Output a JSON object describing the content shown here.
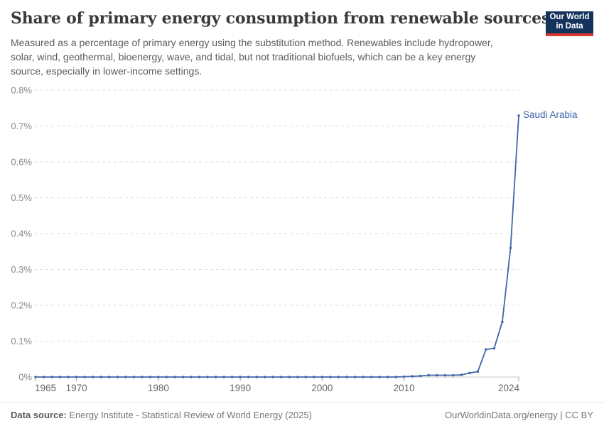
{
  "header": {
    "title": "Share of primary energy consumption from renewable sources",
    "subtitle_lines": [
      "Measured as a percentage of primary energy using the substitution method. Renewables include hydropower,",
      "solar, wind, geothermal, bioenergy, wave, and tidal, but not traditional biofuels, which can be a key energy",
      "source, especially in lower-income settings."
    ]
  },
  "logo": {
    "line1": "Our World",
    "line2": "in Data",
    "navy_color": "#14335c",
    "red_color": "#d7382e"
  },
  "footer": {
    "datasource_label": "Data source:",
    "datasource_text": " Energy Institute - Statistical Review of World Energy (2025)",
    "right_text": "OurWorldinData.org/energy | CC BY"
  },
  "colors": {
    "line": "#4066a8",
    "entity_label": "#3d63a8",
    "gridline": "#dedede",
    "axis_line": "#c8c8c8",
    "tick_mark": "#a9a9a9",
    "y_tick_label": "#8a8a8a",
    "x_tick_label": "#666666"
  },
  "chart_data": {
    "type": "line",
    "title": "Share of primary energy consumption from renewable sources",
    "xlabel": "",
    "ylabel": "",
    "unit": "%",
    "ylim": [
      0,
      0.8
    ],
    "grid": "horizontal-dashed",
    "legend_position": "end-of-line-label",
    "x": [
      1965,
      1966,
      1967,
      1968,
      1969,
      1970,
      1971,
      1972,
      1973,
      1974,
      1975,
      1976,
      1977,
      1978,
      1979,
      1980,
      1981,
      1982,
      1983,
      1984,
      1985,
      1986,
      1987,
      1988,
      1989,
      1990,
      1991,
      1992,
      1993,
      1994,
      1995,
      1996,
      1997,
      1998,
      1999,
      2000,
      2001,
      2002,
      2003,
      2004,
      2005,
      2006,
      2007,
      2008,
      2009,
      2010,
      2011,
      2012,
      2013,
      2014,
      2015,
      2016,
      2017,
      2018,
      2019,
      2020,
      2021,
      2022,
      2023,
      2024
    ],
    "series": [
      {
        "name": "Saudi Arabia",
        "values": [
          0,
          0,
          0,
          0,
          0,
          0,
          0,
          0,
          0,
          0,
          0,
          0,
          0,
          0,
          0,
          0,
          0,
          0,
          0,
          0,
          0,
          0,
          0,
          0,
          0,
          0,
          0,
          0,
          0,
          0,
          0,
          0,
          0,
          0,
          0,
          0,
          0,
          0,
          0,
          0,
          0,
          0,
          0,
          0,
          0,
          0.001,
          0.002,
          0.003,
          0.005,
          0.005,
          0.005,
          0.005,
          0.006,
          0.011,
          0.015,
          0.077,
          0.08,
          0.154,
          0.36,
          0.729
        ]
      }
    ],
    "yticks": [
      {
        "value": 0,
        "label": "0%"
      },
      {
        "value": 0.1,
        "label": "0.1%"
      },
      {
        "value": 0.2,
        "label": "0.2%"
      },
      {
        "value": 0.3,
        "label": "0.3%"
      },
      {
        "value": 0.4,
        "label": "0.4%"
      },
      {
        "value": 0.5,
        "label": "0.5%"
      },
      {
        "value": 0.6,
        "label": "0.6%"
      },
      {
        "value": 0.7,
        "label": "0.7%"
      },
      {
        "value": 0.8,
        "label": "0.8%"
      }
    ],
    "xticks": [
      {
        "value": 1965,
        "label": "1965",
        "align": "start"
      },
      {
        "value": 1970,
        "label": "1970",
        "align": "middle"
      },
      {
        "value": 1980,
        "label": "1980",
        "align": "middle"
      },
      {
        "value": 1990,
        "label": "1990",
        "align": "middle"
      },
      {
        "value": 2000,
        "label": "2000",
        "align": "middle"
      },
      {
        "value": 2010,
        "label": "2010",
        "align": "middle"
      },
      {
        "value": 2024,
        "label": "2024",
        "align": "end"
      }
    ]
  }
}
